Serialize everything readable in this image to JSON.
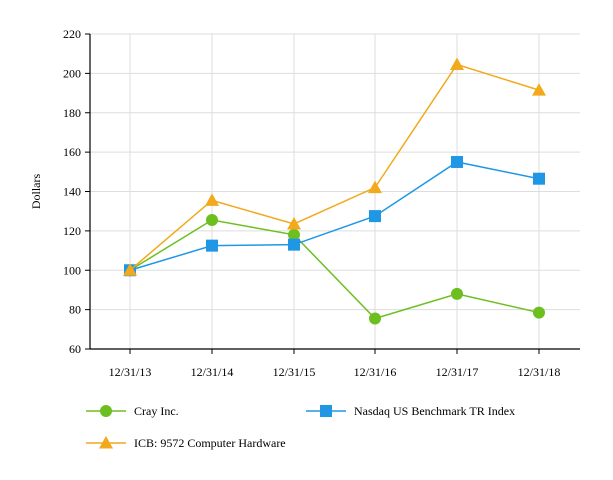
{
  "chart_data": {
    "type": "line",
    "title": "",
    "xlabel": "",
    "ylabel": "Dollars",
    "categories": [
      "12/31/13",
      "12/31/14",
      "12/31/15",
      "12/31/16",
      "12/31/17",
      "12/31/18"
    ],
    "ylim": [
      60,
      220
    ],
    "yticks": [
      60,
      80,
      100,
      120,
      140,
      160,
      180,
      200,
      220
    ],
    "grid": true,
    "legend_position": "bottom",
    "series": [
      {
        "name": "Cray Inc.",
        "marker": "circle",
        "color": "#6dbf1f",
        "values": [
          100,
          125.5,
          118,
          75.5,
          88,
          78.5
        ]
      },
      {
        "name": "Nasdaq US Benchmark TR Index",
        "marker": "square",
        "color": "#1f97e5",
        "values": [
          100,
          112.5,
          113,
          127.5,
          155,
          146.5
        ]
      },
      {
        "name": "ICB: 9572 Computer Hardware",
        "marker": "triangle",
        "color": "#f2a91b",
        "values": [
          100,
          135.5,
          123.5,
          142,
          204.5,
          191.5
        ]
      }
    ]
  }
}
